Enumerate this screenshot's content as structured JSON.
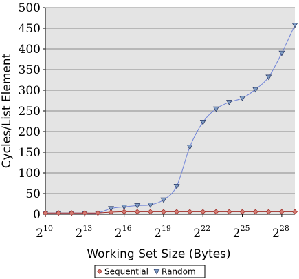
{
  "chart_data": {
    "type": "line",
    "title": "",
    "xlabel": "Working Set Size (Bytes)",
    "ylabel": "Cycles/List Element",
    "x_scale": "log2",
    "x": [
      1024,
      2048,
      4096,
      8192,
      16384,
      32768,
      65536,
      131072,
      262144,
      524288,
      1048576,
      2097152,
      4194304,
      8388608,
      16777216,
      33554432,
      67108864,
      134217728,
      268435456,
      536870912
    ],
    "xlim": [
      1024,
      536870912
    ],
    "ylim": [
      0,
      500
    ],
    "x_ticks": [
      {
        "value": 1024,
        "base": "2",
        "exp": "10"
      },
      {
        "value": 8192,
        "base": "2",
        "exp": "13"
      },
      {
        "value": 65536,
        "base": "2",
        "exp": "16"
      },
      {
        "value": 524288,
        "base": "2",
        "exp": "19"
      },
      {
        "value": 4194304,
        "base": "2",
        "exp": "22"
      },
      {
        "value": 33554432,
        "base": "2",
        "exp": "25"
      },
      {
        "value": 268435456,
        "base": "2",
        "exp": "28"
      }
    ],
    "y_ticks": [
      "0",
      "50",
      "100",
      "150",
      "200",
      "250",
      "300",
      "350",
      "400",
      "450",
      "500"
    ],
    "grid": "horizontal",
    "background": "#e4e4e4",
    "legend_position": "bottom",
    "series": [
      {
        "name": "Sequential",
        "marker": "diamond",
        "color": "#a0302a",
        "marker_fill": "#d47a72",
        "values": [
          3,
          3,
          3,
          3,
          3,
          5,
          6,
          6,
          6,
          6,
          6,
          6,
          6,
          6,
          6,
          6,
          6,
          6,
          6,
          6
        ]
      },
      {
        "name": "Random",
        "marker": "triangle-down",
        "color": "#6e82d8",
        "marker_fill": "#7f9cc4",
        "values": [
          3,
          3,
          3,
          3,
          3,
          14,
          18,
          21,
          23,
          35,
          68,
          163,
          223,
          255,
          271,
          281,
          302,
          332,
          390,
          458
        ]
      }
    ]
  }
}
